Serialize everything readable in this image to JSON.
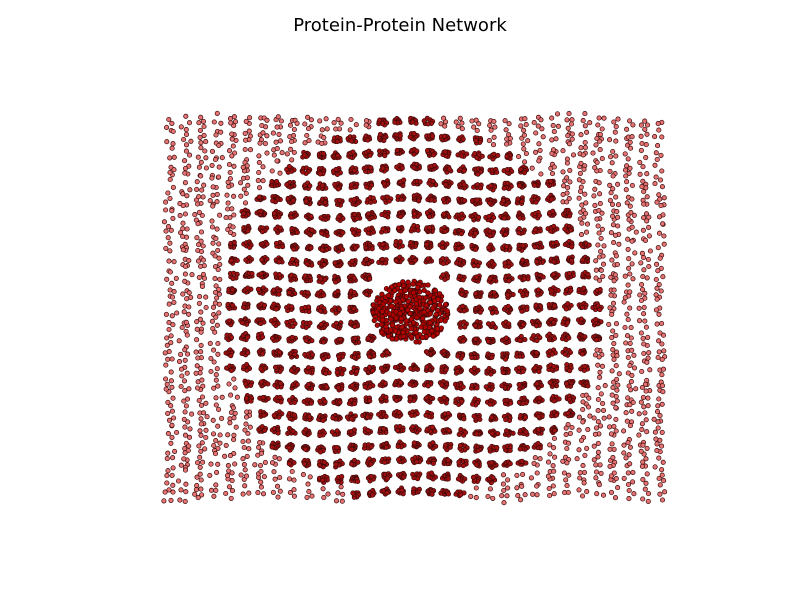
{
  "figure": {
    "title": "Protein-Protein Network"
  },
  "chart_data": {
    "type": "scatter",
    "title": "Protein-Protein Network",
    "xlabel": "",
    "ylabel": "",
    "axes_visible": false,
    "grid": false,
    "legend": "none",
    "colors": {
      "node_fill": "#e57373",
      "node_edge": "#3a0a0a",
      "dense_fill": "#a01010",
      "core_fill": "#b00000"
    },
    "structure": {
      "layout": "rectangular lattice of small node clusters",
      "clusters_per_row": 33,
      "cluster_rows": 25,
      "dense_central_hub": true
    }
  }
}
